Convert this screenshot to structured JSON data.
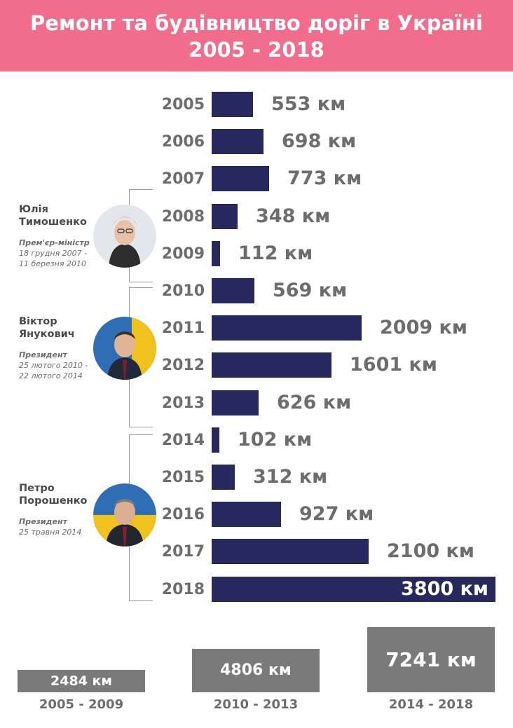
{
  "header": {
    "title_line1": "Ремонт та будівництво доріг в Україні",
    "title_line2": "2005 - 2018",
    "background_color": "#f26c8c"
  },
  "chart_data": {
    "type": "bar",
    "orientation": "horizontal",
    "unit": "км",
    "bar_color": "#27285d",
    "categories": [
      "2005",
      "2006",
      "2007",
      "2008",
      "2009",
      "2010",
      "2011",
      "2012",
      "2013",
      "2014",
      "2015",
      "2016",
      "2017",
      "2018"
    ],
    "values": [
      553,
      698,
      773,
      348,
      112,
      569,
      2009,
      1601,
      626,
      102,
      312,
      927,
      2100,
      3800
    ],
    "labels": [
      "553 км",
      "698 км",
      "773 км",
      "348 км",
      "112 км",
      "569 км",
      "2009 км",
      "1601 км",
      "626 км",
      "102 км",
      "312 км",
      "927 км",
      "2100 км",
      "3800 км"
    ]
  },
  "people": [
    {
      "name_line1": "Юлія",
      "name_line2": "Тимошенко",
      "role": "Прем'єр-міністр",
      "dates_line1": "18 грудня 2007 -",
      "dates_line2": "11 березня 2010",
      "avatar_icon": "person-portrait-icon"
    },
    {
      "name_line1": "Віктор",
      "name_line2": "Янукович",
      "role": "Президент",
      "dates_line1": "25 лютого 2010 -",
      "dates_line2": "22 лютого 2014",
      "avatar_icon": "person-portrait-icon"
    },
    {
      "name_line1": "Петро",
      "name_line2": "Порошенко",
      "role": "Президент",
      "dates_line1": "25 травня 2014",
      "avatar_icon": "person-portrait-icon"
    }
  ],
  "summary": {
    "bar_color": "#7a7a7a",
    "items": [
      {
        "period": "2005 - 2009",
        "value": 2484,
        "label": "2484 км"
      },
      {
        "period": "2010 - 2013",
        "value": 4806,
        "label": "4806 км"
      },
      {
        "period": "2014 - 2018",
        "value": 7241,
        "label": "7241 км"
      }
    ]
  }
}
